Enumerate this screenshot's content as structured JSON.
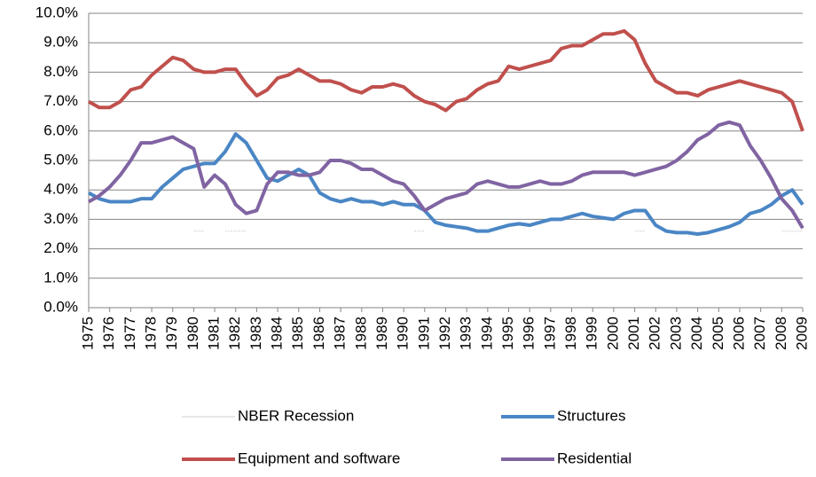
{
  "chart_data": {
    "type": "line",
    "x": [
      1975,
      1975.5,
      1976,
      1976.5,
      1977,
      1977.5,
      1978,
      1978.5,
      1979,
      1979.5,
      1980,
      1980.5,
      1981,
      1981.5,
      1982,
      1982.5,
      1983,
      1983.5,
      1984,
      1984.5,
      1985,
      1985.5,
      1986,
      1986.5,
      1987,
      1987.5,
      1988,
      1988.5,
      1989,
      1989.5,
      1990,
      1990.5,
      1991,
      1991.5,
      1992,
      1992.5,
      1993,
      1993.5,
      1994,
      1994.5,
      1995,
      1995.5,
      1996,
      1996.5,
      1997,
      1997.5,
      1998,
      1998.5,
      1999,
      1999.5,
      2000,
      2000.5,
      2001,
      2001.5,
      2002,
      2002.5,
      2003,
      2003.5,
      2004,
      2004.5,
      2005,
      2005.5,
      2006,
      2006.5,
      2007,
      2007.5,
      2008,
      2008.5,
      2009
    ],
    "series": [
      {
        "name": "NBER Recession",
        "color": "#e6e6e6",
        "values": [
          null,
          null,
          null,
          null,
          null,
          null,
          null,
          null,
          null,
          null,
          2.6,
          2.6,
          null,
          2.6,
          2.6,
          2.6,
          null,
          null,
          null,
          null,
          null,
          null,
          null,
          null,
          null,
          null,
          null,
          null,
          null,
          null,
          null,
          2.6,
          2.6,
          null,
          null,
          null,
          null,
          null,
          null,
          null,
          null,
          null,
          null,
          null,
          null,
          null,
          null,
          null,
          null,
          null,
          null,
          null,
          2.6,
          2.6,
          null,
          null,
          null,
          null,
          null,
          null,
          null,
          null,
          null,
          null,
          null,
          null,
          2.6,
          2.6,
          2.6
        ]
      },
      {
        "name": "Structures",
        "color": "#4a86c5",
        "values": [
          3.9,
          3.7,
          3.6,
          3.6,
          3.6,
          3.7,
          3.7,
          4.1,
          4.4,
          4.7,
          4.8,
          4.9,
          4.9,
          5.3,
          5.9,
          5.6,
          5.0,
          4.4,
          4.3,
          4.5,
          4.7,
          4.5,
          3.9,
          3.7,
          3.6,
          3.7,
          3.6,
          3.6,
          3.5,
          3.6,
          3.5,
          3.5,
          3.3,
          2.9,
          2.8,
          2.75,
          2.7,
          2.6,
          2.6,
          2.7,
          2.8,
          2.85,
          2.8,
          2.9,
          3.0,
          3.0,
          3.1,
          3.2,
          3.1,
          3.05,
          3.0,
          3.2,
          3.3,
          3.3,
          2.8,
          2.6,
          2.55,
          2.55,
          2.5,
          2.55,
          2.65,
          2.75,
          2.9,
          3.2,
          3.3,
          3.5,
          3.8,
          4.0,
          3.5
        ]
      },
      {
        "name": "Equipment and software",
        "color": "#c0504d",
        "values": [
          7.0,
          6.8,
          6.8,
          7.0,
          7.4,
          7.5,
          7.9,
          8.2,
          8.5,
          8.4,
          8.1,
          8.0,
          8.0,
          8.1,
          8.1,
          7.6,
          7.2,
          7.4,
          7.8,
          7.9,
          8.1,
          7.9,
          7.7,
          7.7,
          7.6,
          7.4,
          7.3,
          7.5,
          7.5,
          7.6,
          7.5,
          7.2,
          7.0,
          6.9,
          6.7,
          7.0,
          7.1,
          7.4,
          7.6,
          7.7,
          8.2,
          8.1,
          8.2,
          8.3,
          8.4,
          8.8,
          8.9,
          8.9,
          9.1,
          9.3,
          9.3,
          9.4,
          9.1,
          8.3,
          7.7,
          7.5,
          7.3,
          7.3,
          7.2,
          7.4,
          7.5,
          7.6,
          7.7,
          7.6,
          7.5,
          7.4,
          7.3,
          7.0,
          6.0
        ]
      },
      {
        "name": "Residential",
        "color": "#8064a2",
        "values": [
          3.6,
          3.8,
          4.1,
          4.5,
          5.0,
          5.6,
          5.6,
          5.7,
          5.8,
          5.6,
          5.4,
          4.1,
          4.5,
          4.2,
          3.5,
          3.2,
          3.3,
          4.2,
          4.6,
          4.6,
          4.5,
          4.5,
          4.6,
          5.0,
          5.0,
          4.9,
          4.7,
          4.7,
          4.5,
          4.3,
          4.2,
          3.8,
          3.3,
          3.5,
          3.7,
          3.8,
          3.9,
          4.2,
          4.3,
          4.2,
          4.1,
          4.1,
          4.2,
          4.3,
          4.2,
          4.2,
          4.3,
          4.5,
          4.6,
          4.6,
          4.6,
          4.6,
          4.5,
          4.6,
          4.7,
          4.8,
          5.0,
          5.3,
          5.7,
          5.9,
          6.2,
          6.3,
          6.2,
          5.5,
          5.0,
          4.4,
          3.7,
          3.3,
          2.7
        ]
      }
    ],
    "xlim": [
      1975,
      2009
    ],
    "xticks": [
      1975,
      1976,
      1977,
      1978,
      1979,
      1980,
      1981,
      1982,
      1983,
      1984,
      1985,
      1986,
      1987,
      1988,
      1989,
      1990,
      1991,
      1992,
      1993,
      1994,
      1995,
      1996,
      1997,
      1998,
      1999,
      2000,
      2001,
      2002,
      2003,
      2004,
      2005,
      2006,
      2007,
      2008,
      2009
    ],
    "ylim": [
      0,
      10
    ],
    "yticks": [
      {
        "value": 0,
        "label": "0.0%"
      },
      {
        "value": 1,
        "label": "1.0%"
      },
      {
        "value": 2,
        "label": "2.0%"
      },
      {
        "value": 3,
        "label": "3.0%"
      },
      {
        "value": 4,
        "label": "4.0%"
      },
      {
        "value": 5,
        "label": "5.0%"
      },
      {
        "value": 6,
        "label": "6.0%"
      },
      {
        "value": 7,
        "label": "7.0%"
      },
      {
        "value": 8,
        "label": "8.0%"
      },
      {
        "value": 9,
        "label": "9.0%"
      },
      {
        "value": 10,
        "label": "10.0%"
      }
    ],
    "grid": true
  }
}
